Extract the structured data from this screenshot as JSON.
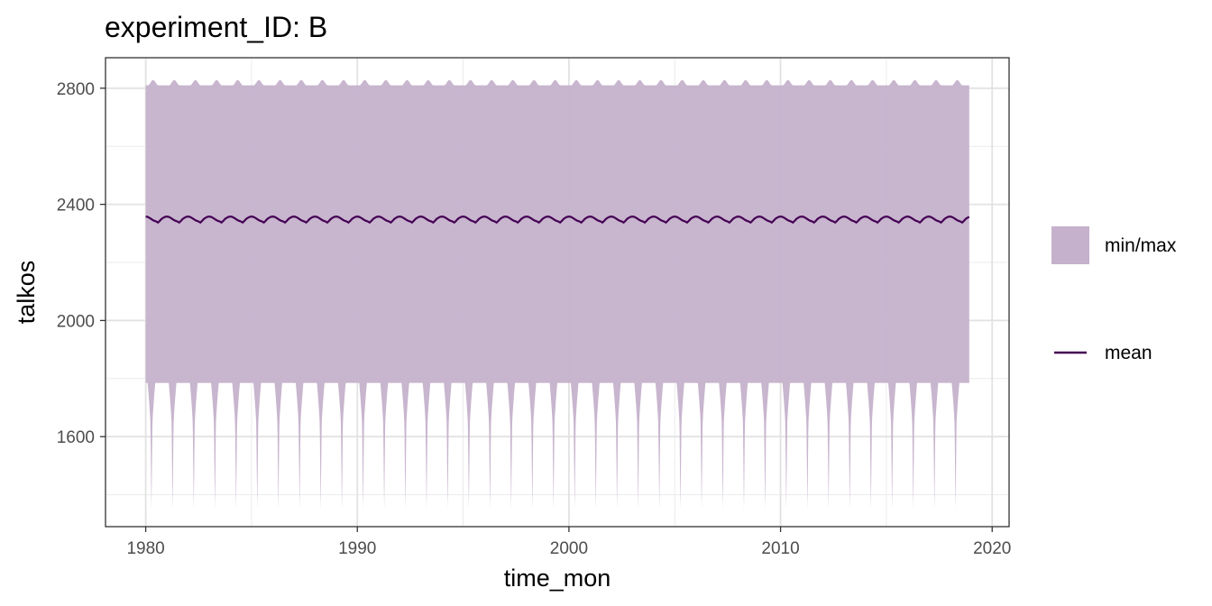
{
  "chart_data": {
    "type": "area",
    "title": "experiment_ID: B",
    "xlabel": "time_mon",
    "ylabel": "talkos",
    "x_ticks": [
      1980,
      1990,
      2000,
      2010,
      2020
    ],
    "y_ticks": [
      1600,
      2000,
      2400,
      2800
    ],
    "xlim": [
      1978.1,
      2020.8
    ],
    "ylim": [
      1290,
      2905
    ],
    "grid": true,
    "legend_position": "right",
    "x_range": [
      1980.0,
      2018.917
    ],
    "series": [
      {
        "name": "min/max",
        "kind": "ribbon",
        "color": "#c5b1cb",
        "max_typical": 2810,
        "max_peak": 2828,
        "min_typical": 1785,
        "min_trough": 1345
      },
      {
        "name": "mean",
        "kind": "line",
        "color": "#440154",
        "mean_level": 2350,
        "seasonal_amplitude": 8
      }
    ],
    "legend": [
      {
        "label": "min/max",
        "kind": "ribbon",
        "color": "#c5b1cb"
      },
      {
        "label": "mean",
        "kind": "line",
        "color": "#440154"
      }
    ]
  }
}
